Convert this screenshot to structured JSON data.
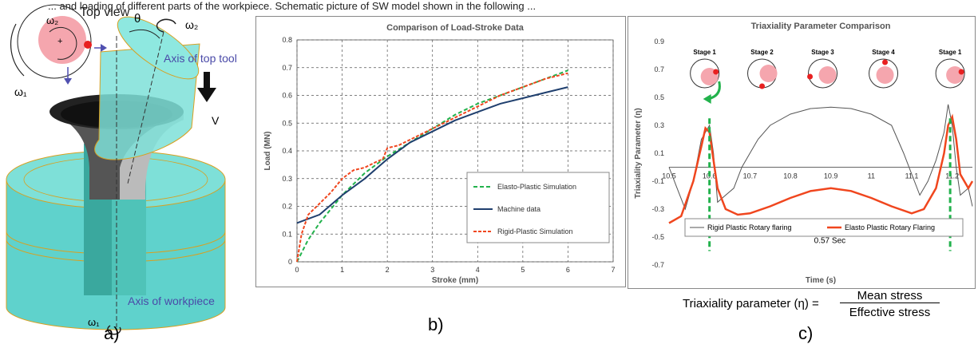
{
  "caption_fragment": "... and loading of different parts of the workpiece. Schematic picture of SW model shown in the following ...",
  "panel_a": {
    "label": "a)",
    "top_view": "Top view",
    "omega1": "ω₁",
    "omega2": "ω₂",
    "theta": "θ",
    "v": "V",
    "axis_top_tool": "Axis of top tool",
    "axis_workpiece": "Axis of workpiece",
    "plus": "+"
  },
  "panel_b": {
    "label": "b)"
  },
  "panel_c": {
    "label": "c)",
    "formula_lhs": "Triaxiality parameter (η) =",
    "formula_num": "Mean stress",
    "formula_den": "Effective stress",
    "duration_label": "0.57 Sec",
    "stages": [
      "Stage 1",
      "Stage 2",
      "Stage 3",
      "Stage 4",
      "Stage 1"
    ]
  },
  "chart_data": [
    {
      "type": "line",
      "title": "Comparison of Load-Stroke Data",
      "xlabel": "Stroke (mm)",
      "ylabel": "Load (MN)",
      "xlim": [
        0,
        7
      ],
      "ylim": [
        0,
        0.8
      ],
      "xticks": [
        "0",
        "1",
        "2",
        "3",
        "4",
        "5",
        "6",
        "7"
      ],
      "yticks": [
        "0",
        "0.1",
        "0.2",
        "0.3",
        "0.4",
        "0.5",
        "0.6",
        "0.7",
        "0.8"
      ],
      "grid": true,
      "legend": "bottom-right",
      "colors": {
        "elasto": "#22b24c",
        "machine": "#1f3f6e",
        "rigid": "#f0461e"
      },
      "series": [
        {
          "name": "Elasto-Plastic Simulation",
          "x": [
            0,
            0.25,
            0.5,
            0.75,
            1,
            1.25,
            1.5,
            1.75,
            2,
            2.5,
            3,
            3.5,
            4,
            4.5,
            5,
            5.5,
            6
          ],
          "y": [
            0,
            0.08,
            0.14,
            0.19,
            0.24,
            0.28,
            0.32,
            0.35,
            0.38,
            0.43,
            0.48,
            0.53,
            0.57,
            0.6,
            0.63,
            0.66,
            0.69
          ]
        },
        {
          "name": "Machine data",
          "x": [
            0,
            0.5,
            1,
            1.5,
            2,
            2.5,
            3,
            3.5,
            4,
            4.5,
            5,
            5.5,
            6
          ],
          "y": [
            0.14,
            0.17,
            0.24,
            0.3,
            0.37,
            0.43,
            0.47,
            0.51,
            0.54,
            0.57,
            0.59,
            0.61,
            0.63
          ]
        },
        {
          "name": "Rigid-Plastic Simulation",
          "x": [
            0,
            0.1,
            0.25,
            0.5,
            0.75,
            1,
            1.25,
            1.5,
            1.75,
            1.9,
            2,
            2.25,
            2.5,
            3,
            3.5,
            4,
            4.5,
            5,
            5.5,
            6
          ],
          "y": [
            0,
            0.1,
            0.17,
            0.21,
            0.25,
            0.3,
            0.33,
            0.34,
            0.36,
            0.37,
            0.41,
            0.42,
            0.44,
            0.48,
            0.52,
            0.56,
            0.6,
            0.63,
            0.66,
            0.68
          ]
        }
      ]
    },
    {
      "type": "line",
      "title": "Triaxiality Parameter Comparison",
      "xlabel": "Time (s)",
      "ylabel": "Triaxiality Parameter (η)",
      "xlim": [
        10.5,
        11.25
      ],
      "ylim": [
        -0.7,
        0.9
      ],
      "xticks": [
        "10.5",
        "10.6",
        "10.7",
        "10.8",
        "10.9",
        "11",
        "11.1",
        "11.2"
      ],
      "yticks": [
        "0.9",
        "0.7",
        "0.5",
        "0.3",
        "0.1",
        "-0.1",
        "-0.3",
        "-0.5",
        "-0.7"
      ],
      "legend": "bottom",
      "colors": {
        "rigid": "#555555",
        "elasto": "#f0461e"
      },
      "series": [
        {
          "name": "Rigid Plastic Rotary flaring",
          "x": [
            10.5,
            10.52,
            10.54,
            10.56,
            10.58,
            10.6,
            10.61,
            10.62,
            10.64,
            10.66,
            10.68,
            10.7,
            10.72,
            10.75,
            10.8,
            10.85,
            10.9,
            10.95,
            11,
            11.05,
            11.08,
            11.1,
            11.12,
            11.14,
            11.16,
            11.18,
            11.19,
            11.2,
            11.21,
            11.22,
            11.24,
            11.25
          ],
          "y": [
            0.0,
            -0.15,
            -0.3,
            -0.1,
            0.2,
            0.3,
            0.1,
            -0.25,
            -0.2,
            -0.15,
            0.0,
            0.1,
            0.2,
            0.3,
            0.38,
            0.42,
            0.43,
            0.42,
            0.38,
            0.3,
            0.1,
            -0.05,
            -0.2,
            -0.1,
            0.05,
            0.25,
            0.45,
            0.3,
            0.0,
            -0.2,
            -0.15,
            -0.28
          ]
        },
        {
          "name": "Elasto Plastic Rotary Flaring",
          "x": [
            10.5,
            10.53,
            10.56,
            10.58,
            10.59,
            10.6,
            10.61,
            10.62,
            10.64,
            10.67,
            10.7,
            10.75,
            10.8,
            10.85,
            10.9,
            10.95,
            11,
            11.05,
            11.1,
            11.13,
            11.16,
            11.18,
            11.19,
            11.2,
            11.21,
            11.22,
            11.24,
            11.25
          ],
          "y": [
            -0.4,
            -0.35,
            -0.1,
            0.15,
            0.28,
            0.25,
            0.05,
            -0.15,
            -0.3,
            -0.34,
            -0.33,
            -0.28,
            -0.22,
            -0.17,
            -0.15,
            -0.17,
            -0.22,
            -0.28,
            -0.33,
            -0.3,
            -0.15,
            0.1,
            0.3,
            0.36,
            0.2,
            -0.05,
            -0.15,
            -0.1
          ]
        }
      ]
    }
  ]
}
